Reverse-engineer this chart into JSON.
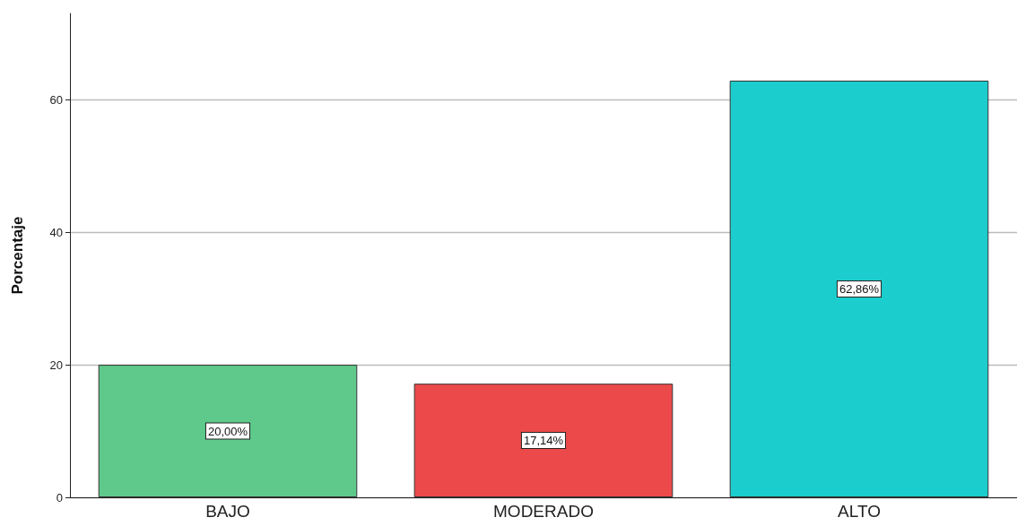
{
  "chart_data": {
    "type": "bar",
    "ylabel": "Porcentaje",
    "categories": [
      "BAJO",
      "MODERADO",
      "ALTO"
    ],
    "values": [
      20,
      17.14,
      62.86
    ],
    "colors": [
      "#5ec98a",
      "#ec4a4a",
      "#1ccdcd"
    ],
    "value_labels": [
      "20,00%",
      "17,14%",
      "62,86%"
    ],
    "ylim": [
      0,
      73
    ],
    "yticks": [
      0,
      20,
      40,
      60
    ],
    "grid": "y"
  }
}
